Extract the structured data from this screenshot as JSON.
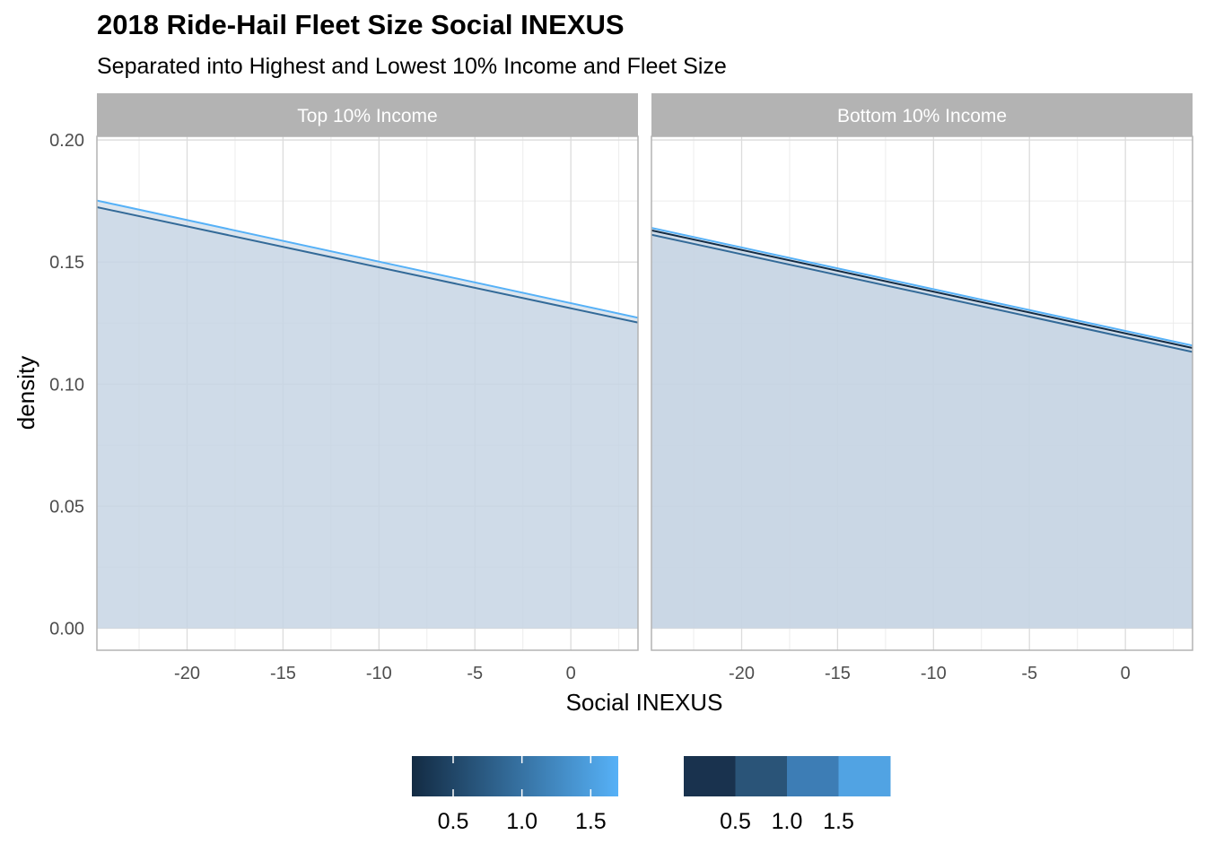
{
  "title": "2018 Ride-Hail Fleet Size Social INEXUS",
  "subtitle": "Separated into Highest and Lowest 10% Income and Fleet Size",
  "chart_data": {
    "type": "area",
    "xlabel": "Social INEXUS",
    "ylabel": "density",
    "xlim": [
      -24.7,
      3.5
    ],
    "ylim": [
      -0.009,
      0.2015
    ],
    "x_ticks": [
      -20,
      -15,
      -10,
      -5,
      0
    ],
    "y_ticks": [
      0.0,
      0.05,
      0.1,
      0.15,
      0.2
    ],
    "x_tick_labels": [
      "-20",
      "-15",
      "-10",
      "-5",
      "0"
    ],
    "y_tick_labels": [
      "0.00",
      "0.05",
      "0.10",
      "0.15",
      "0.20"
    ],
    "grid": true,
    "colors": {
      "fill": "#c7d5e3",
      "panel_border": "#b3b3b3",
      "strip_bg": "#b3b3b3",
      "grid_major": "#dcdcdc",
      "grid_minor": "#ececec"
    },
    "panels": [
      {
        "strip": "Top 10% Income",
        "series": [
          {
            "color": "#56b1f7",
            "x": [
              -24.7,
              3.5
            ],
            "y": [
              0.1752,
              0.1272
            ]
          },
          {
            "color": "#336a98",
            "x": [
              -24.7,
              3.5
            ],
            "y": [
              0.1725,
              0.1252
            ]
          }
        ]
      },
      {
        "strip": "Bottom 10% Income",
        "series": [
          {
            "color": "#132b43",
            "x": [
              -24.7,
              3.5
            ],
            "y": [
              0.163,
              0.1148
            ]
          },
          {
            "color": "#56b1f7",
            "x": [
              -24.7,
              3.5
            ],
            "y": [
              0.164,
              0.1158
            ]
          },
          {
            "color": "#336a98",
            "x": [
              -24.7,
              3.5
            ],
            "y": [
              0.1612,
              0.1132
            ]
          }
        ]
      }
    ],
    "legends": [
      {
        "type": "colorbar",
        "labels": [
          "0.5",
          "1.0",
          "1.5"
        ],
        "values": [
          0.5,
          1.0,
          1.5
        ],
        "range": [
          0.2,
          1.7
        ],
        "gradient": [
          "#132b43",
          "#56b1f7"
        ]
      },
      {
        "type": "binned",
        "labels": [
          "0.5",
          "1.0",
          "1.5"
        ],
        "values": [
          0.5,
          1.0,
          1.5
        ],
        "swatches": [
          "#19324e",
          "#2a5478",
          "#3d7db5",
          "#51a3e3"
        ]
      }
    ]
  }
}
